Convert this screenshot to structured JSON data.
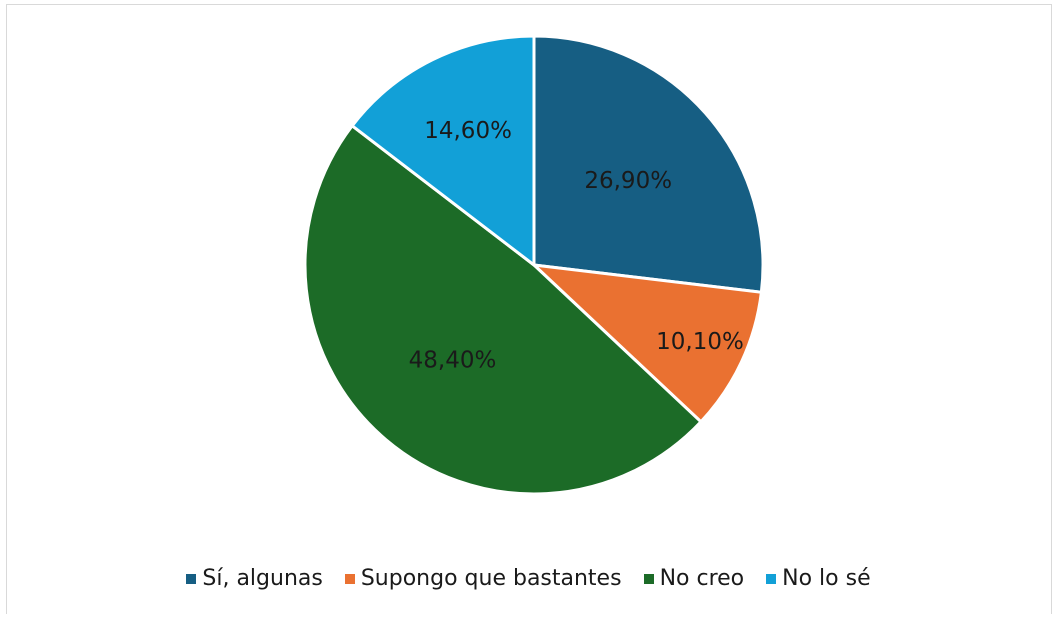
{
  "chart_data": {
    "type": "pie",
    "title": "",
    "categories": [
      "Sí, algunas",
      "Supongo que bastantes",
      "No creo",
      "No lo sé"
    ],
    "values": [
      26.9,
      10.1,
      48.4,
      14.6
    ],
    "data_labels": [
      "26,90%",
      "10,10%",
      "48,40%",
      "14,60%"
    ],
    "colors": [
      "#165e83",
      "#ea7131",
      "#1c6b27",
      "#12a0d7"
    ],
    "legend_position": "bottom",
    "start_angle": "12 o'clock",
    "direction": "clockwise"
  },
  "legend": {
    "items": [
      {
        "label": "Sí, algunas",
        "color": "#165e83"
      },
      {
        "label": "Supongo que bastantes",
        "color": "#ea7131"
      },
      {
        "label": "No creo",
        "color": "#1c6b27"
      },
      {
        "label": "No lo sé",
        "color": "#12a0d7"
      }
    ]
  }
}
